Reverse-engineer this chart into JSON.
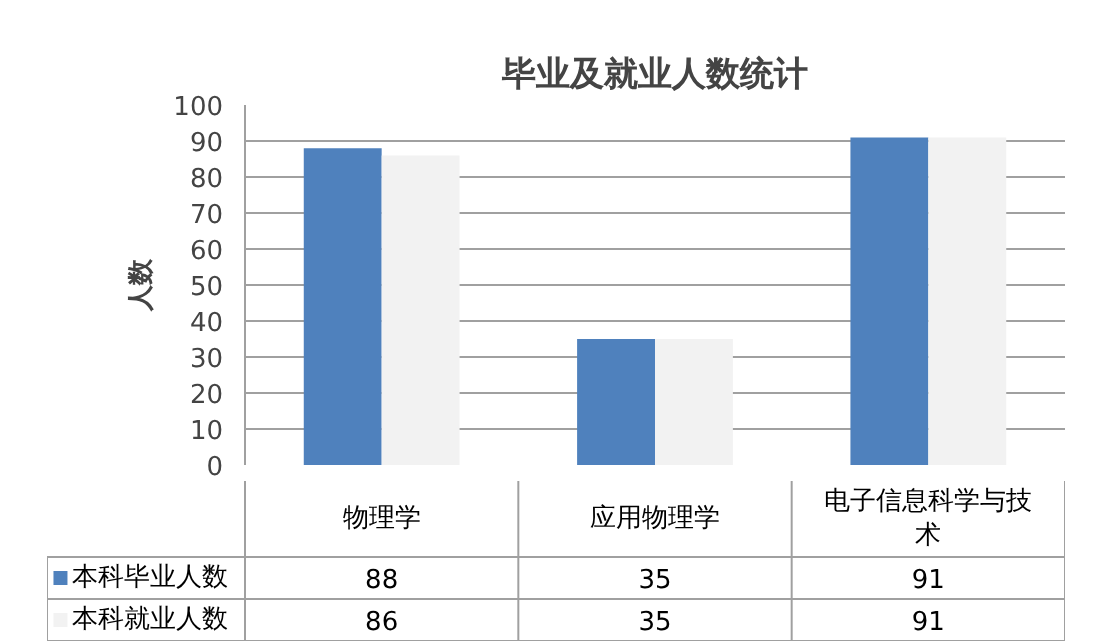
{
  "chart_data": {
    "type": "bar",
    "title": "毕业及就业人数统计",
    "ylabel": "人数",
    "categories": [
      "物理学",
      "应用物理学",
      "电子信息科学与技术"
    ],
    "series": [
      {
        "name": "本科毕业人数",
        "color": "#4f81bd",
        "values": [
          88,
          35,
          91
        ]
      },
      {
        "name": "本科就业人数",
        "color": "#f2f2f2",
        "values": [
          86,
          35,
          91
        ]
      }
    ],
    "ylim": [
      0,
      100
    ],
    "yticks": [
      0,
      10,
      20,
      30,
      40,
      50,
      60,
      70,
      80,
      90,
      100
    ],
    "grid": "y",
    "legend": "bottom",
    "data_labels": true
  }
}
